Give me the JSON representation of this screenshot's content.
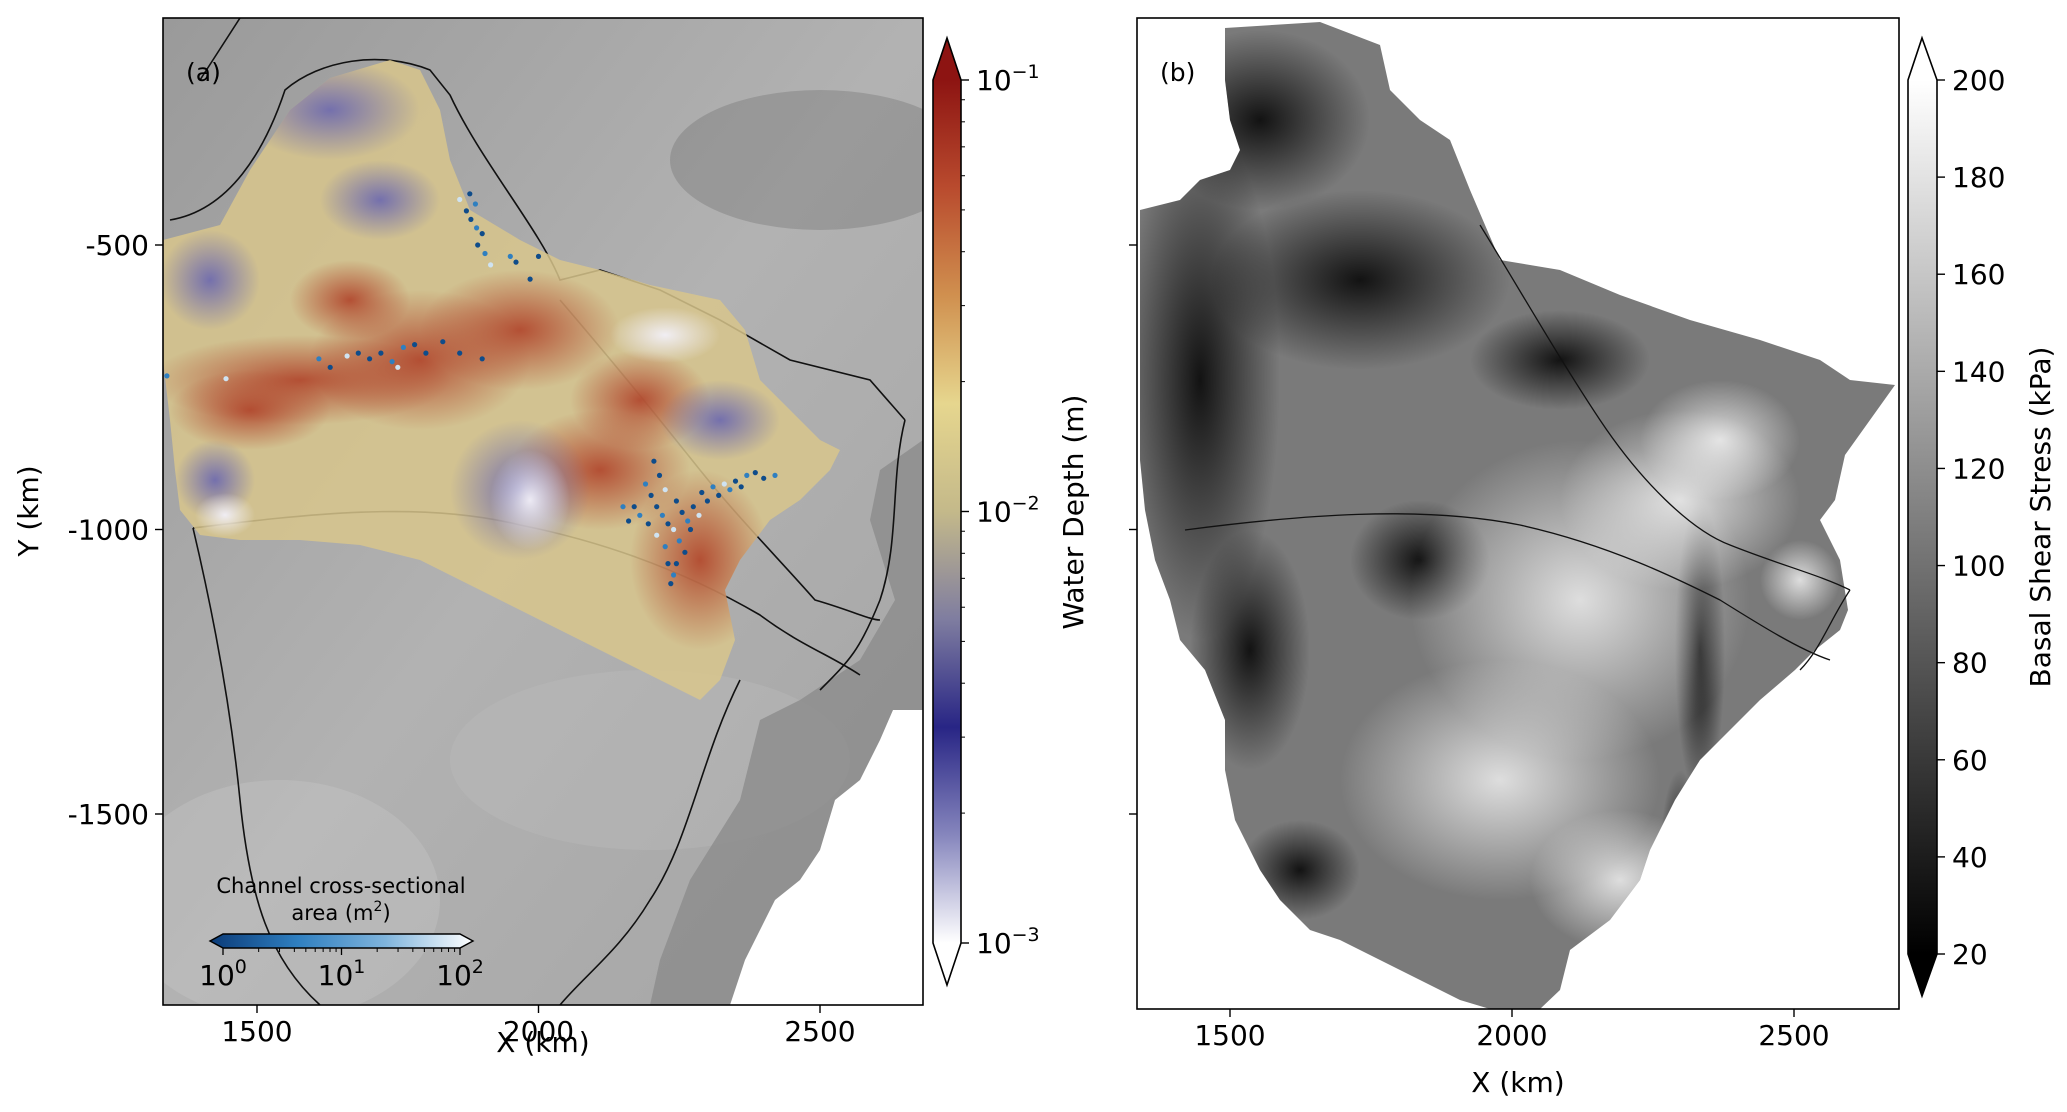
{
  "chart_data": [
    {
      "panel": "(a)",
      "type": "heatmap",
      "xlabel": "X (km)",
      "ylabel": "Y (km)",
      "xticks": [
        1500,
        2000,
        2500
      ],
      "yticks": [
        -500,
        -1000,
        -1500
      ],
      "xlim": [
        1310,
        2530
      ],
      "ylim": [
        -1690,
        -100
      ],
      "xtick_labels": [
        "1500",
        "2000",
        "2500"
      ],
      "ytick_labels": [
        "-500",
        "-1000",
        "-1500"
      ],
      "colorbar": {
        "label": "Water Depth (m)",
        "scale": "log",
        "range": [
          0.001,
          0.1
        ],
        "tick_values": [
          0.001,
          0.01,
          0.1
        ],
        "tick_base": "10",
        "tick_exponents": [
          "−3",
          "−2",
          "−1"
        ],
        "extend": "both",
        "colormap_stops": [
          "#ffffff",
          "#8686bd",
          "#282585",
          "#7f7da0",
          "#c4b98a",
          "#e6d68e",
          "#d0904f",
          "#b94b2e",
          "#8d1412"
        ]
      },
      "overlay_legend": {
        "label_line1": "Channel cross-sectional",
        "label_line2": "area (m",
        "label_sup": "2",
        "label_end": ")",
        "scale": "log",
        "tick_values": [
          1,
          10,
          100
        ],
        "tick_base": "10",
        "tick_exponents": [
          "0",
          "1",
          "2"
        ],
        "colormap_stops": [
          "#0b3b78",
          "#2f7fc0",
          "#7fb4dc",
          "#ffffff"
        ]
      },
      "channel_points": [
        [
          1860,
          -420
        ],
        [
          1872,
          -440
        ],
        [
          1880,
          -455
        ],
        [
          1890,
          -470
        ],
        [
          1900,
          -480
        ],
        [
          1892,
          -500
        ],
        [
          1905,
          -515
        ],
        [
          1915,
          -535
        ],
        [
          1878,
          -410
        ],
        [
          1888,
          -428
        ],
        [
          1700,
          -700
        ],
        [
          1720,
          -690
        ],
        [
          1740,
          -705
        ],
        [
          1680,
          -690
        ],
        [
          1660,
          -695
        ],
        [
          1760,
          -680
        ],
        [
          1780,
          -675
        ],
        [
          1800,
          -690
        ],
        [
          1610,
          -700
        ],
        [
          1830,
          -670
        ],
        [
          1630,
          -715
        ],
        [
          1750,
          -715
        ],
        [
          1860,
          -690
        ],
        [
          1900,
          -700
        ],
        [
          1950,
          -520
        ],
        [
          1960,
          -530
        ],
        [
          2000,
          -520
        ],
        [
          1340,
          -730
        ],
        [
          1445,
          -735
        ],
        [
          1985,
          -560
        ],
        [
          2190,
          -920
        ],
        [
          2200,
          -940
        ],
        [
          2210,
          -960
        ],
        [
          2220,
          -975
        ],
        [
          2230,
          -990
        ],
        [
          2240,
          -1000
        ],
        [
          2250,
          -1020
        ],
        [
          2260,
          -1040
        ],
        [
          2230,
          -1060
        ],
        [
          2240,
          -1080
        ],
        [
          2205,
          -880
        ],
        [
          2215,
          -905
        ],
        [
          2225,
          -930
        ],
        [
          2245,
          -950
        ],
        [
          2255,
          -970
        ],
        [
          2265,
          -985
        ],
        [
          2275,
          -960
        ],
        [
          2290,
          -935
        ],
        [
          2310,
          -925
        ],
        [
          2330,
          -920
        ],
        [
          2350,
          -915
        ],
        [
          2370,
          -905
        ],
        [
          2385,
          -900
        ],
        [
          2170,
          -960
        ],
        [
          2180,
          -975
        ],
        [
          2195,
          -990
        ],
        [
          2210,
          -1010
        ],
        [
          2225,
          -1030
        ],
        [
          2245,
          -1060
        ],
        [
          2235,
          -1095
        ],
        [
          2150,
          -960
        ],
        [
          2160,
          -985
        ],
        [
          2270,
          -1000
        ],
        [
          2285,
          -975
        ],
        [
          2300,
          -950
        ],
        [
          2320,
          -940
        ],
        [
          2340,
          -930
        ],
        [
          2360,
          -925
        ],
        [
          2400,
          -910
        ],
        [
          2420,
          -905
        ]
      ]
    },
    {
      "panel": "(b)",
      "type": "heatmap",
      "xlabel": "X (km)",
      "ylabel": "",
      "xticks": [
        1500,
        2000,
        2500
      ],
      "yticks": [
        -500,
        -1000,
        -1500
      ],
      "xlim": [
        1310,
        2530
      ],
      "ylim": [
        -1690,
        -100
      ],
      "xtick_labels": [
        "1500",
        "2000",
        "2500"
      ],
      "colorbar": {
        "label": "Basal Shear Stress (kPa)",
        "scale": "linear",
        "range": [
          20,
          200
        ],
        "tick_values": [
          20,
          40,
          60,
          80,
          100,
          120,
          140,
          160,
          180,
          200
        ],
        "tick_labels": [
          "20",
          "40",
          "60",
          "80",
          "100",
          "120",
          "140",
          "160",
          "180",
          "200"
        ],
        "extend": "both",
        "colormap_stops": [
          "#000000",
          "#ffffff"
        ]
      }
    }
  ]
}
